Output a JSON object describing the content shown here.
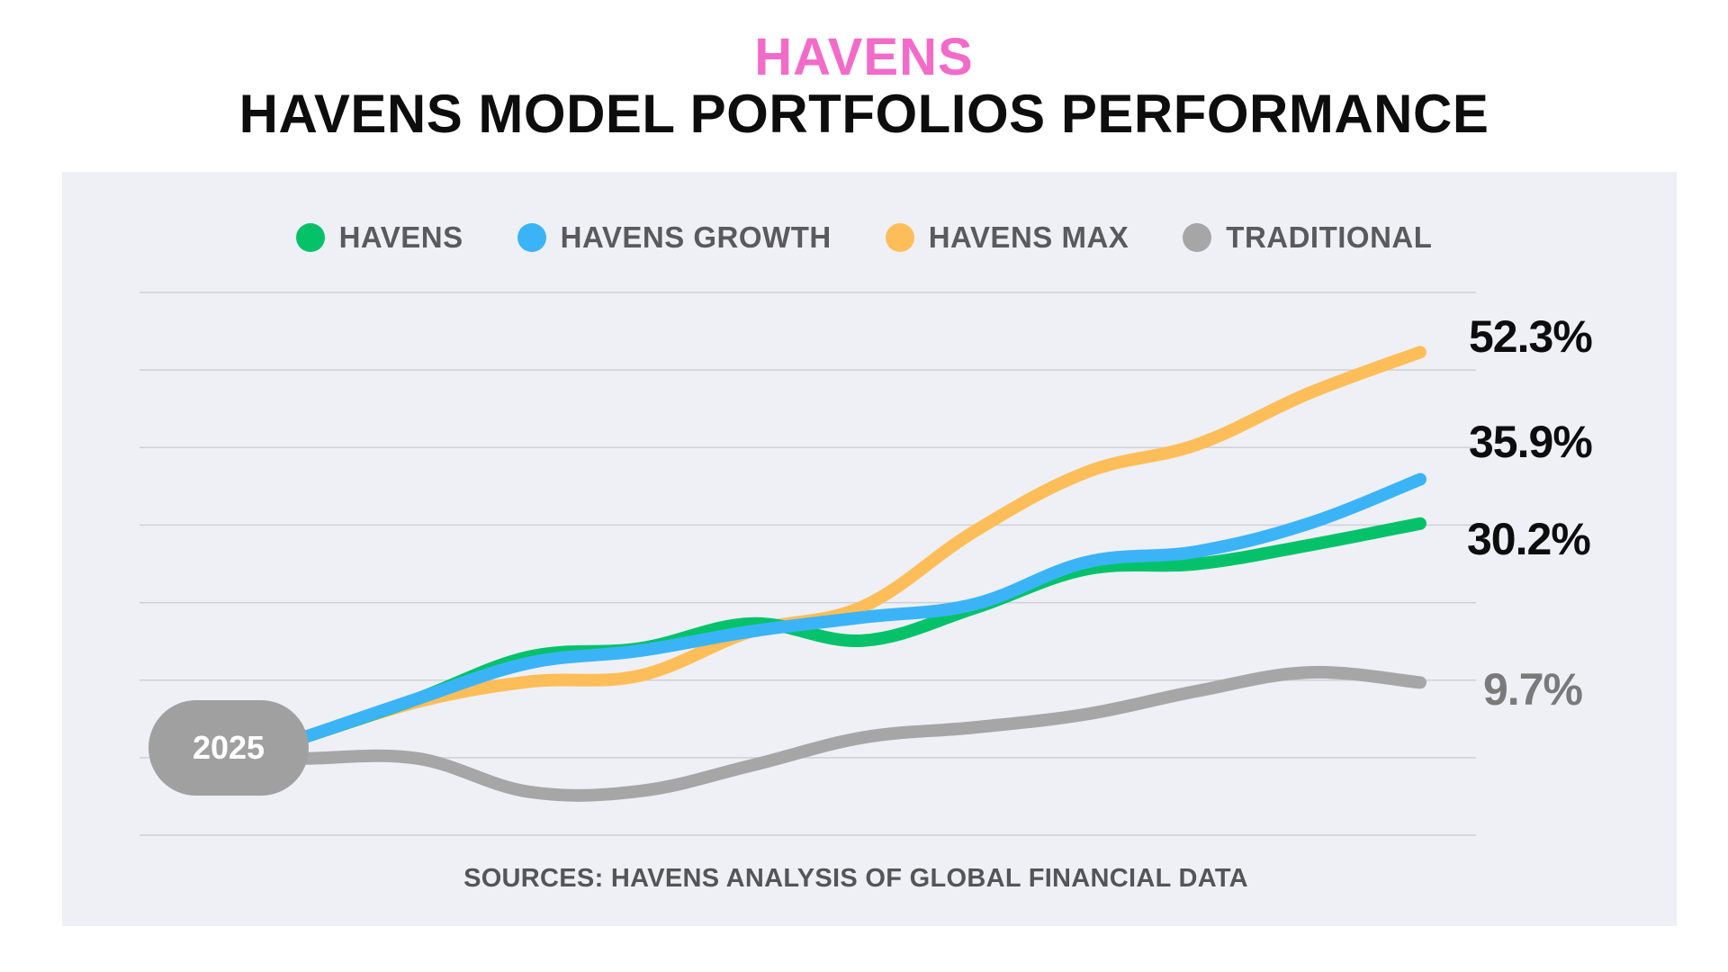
{
  "header": {
    "brand": "HAVENS",
    "title": "HAVENS MODEL PORTFOLIOS PERFORMANCE"
  },
  "chart_data": {
    "type": "line",
    "title": "HAVENS MODEL PORTFOLIOS PERFORMANCE",
    "x": [
      0,
      1,
      2,
      3,
      4,
      5,
      6,
      7,
      8,
      9,
      10
    ],
    "start_label": "2025",
    "ylim": [
      -10,
      60
    ],
    "gridlines": [
      -10,
      0,
      10,
      20,
      30,
      40,
      50,
      60
    ],
    "legend_position": "top",
    "series": [
      {
        "name": "HAVENS",
        "color": "#05c26a",
        "end_label": "30.2%",
        "values": [
          2.7,
          7.6,
          13.0,
          14.1,
          17.3,
          15.1,
          19.3,
          24.3,
          25.0,
          27.4,
          30.2
        ]
      },
      {
        "name": "HAVENS GROWTH",
        "color": "#3bb4f7",
        "end_label": "35.9%",
        "values": [
          2.7,
          7.6,
          12.2,
          13.8,
          16.3,
          18.1,
          19.8,
          25.2,
          26.6,
          30.2,
          35.9
        ]
      },
      {
        "name": "HAVENS MAX",
        "color": "#fdbe5a",
        "end_label": "52.3%",
        "values": [
          2.7,
          7.2,
          9.8,
          10.6,
          16.3,
          19.5,
          29.2,
          36.8,
          40.4,
          47.0,
          52.3
        ]
      },
      {
        "name": "TRADITIONAL",
        "color": "#a6a6a6",
        "end_label": "9.7%",
        "values": [
          -0.1,
          -0.1,
          -4.4,
          -4.3,
          -1.0,
          2.6,
          3.9,
          5.6,
          8.6,
          11.0,
          9.7
        ]
      }
    ]
  },
  "footer": {
    "source": "SOURCES: HAVENS ANALYSIS OF GLOBAL FINANCIAL DATA"
  }
}
